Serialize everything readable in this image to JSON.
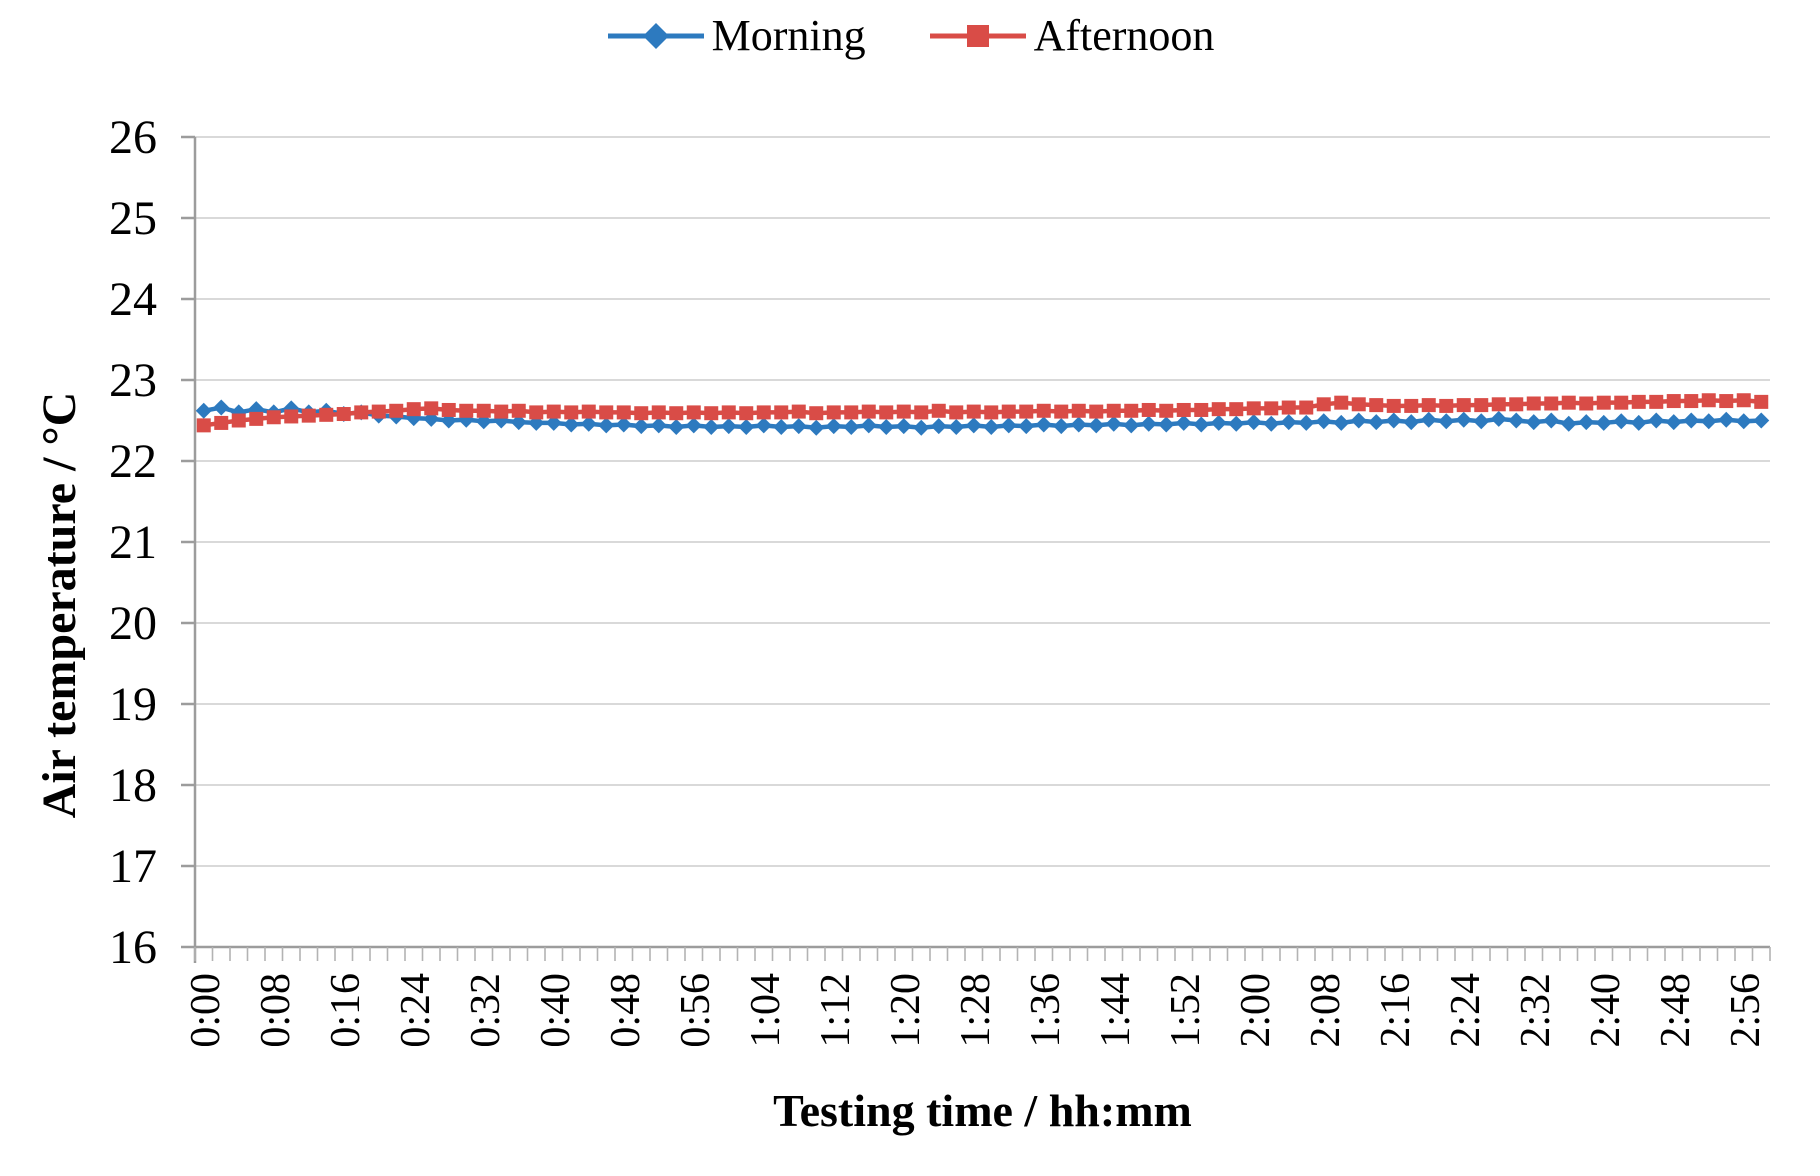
{
  "chart_data": {
    "type": "line",
    "title": "",
    "xlabel": "Testing time / hh:mm",
    "ylabel": "Air temperature / °C",
    "ylim": [
      16,
      26
    ],
    "y_step": 1,
    "x_label_every": 4,
    "grid": true,
    "legend_position": "top-center",
    "grid_color": "#d9d9d9",
    "axis_color": "#9c9c9c",
    "tick_color": "#b3b3b3",
    "x": [
      "0:00",
      "0:02",
      "0:04",
      "0:06",
      "0:08",
      "0:10",
      "0:12",
      "0:14",
      "0:16",
      "0:18",
      "0:20",
      "0:22",
      "0:24",
      "0:26",
      "0:28",
      "0:30",
      "0:32",
      "0:34",
      "0:36",
      "0:38",
      "0:40",
      "0:42",
      "0:44",
      "0:46",
      "0:48",
      "0:50",
      "0:52",
      "0:54",
      "0:56",
      "0:58",
      "1:00",
      "1:02",
      "1:04",
      "1:06",
      "1:08",
      "1:10",
      "1:12",
      "1:14",
      "1:16",
      "1:18",
      "1:20",
      "1:22",
      "1:24",
      "1:26",
      "1:28",
      "1:30",
      "1:32",
      "1:34",
      "1:36",
      "1:38",
      "1:40",
      "1:42",
      "1:44",
      "1:46",
      "1:48",
      "1:50",
      "1:52",
      "1:54",
      "1:56",
      "1:58",
      "2:00",
      "2:02",
      "2:04",
      "2:06",
      "2:08",
      "2:10",
      "2:12",
      "2:14",
      "2:16",
      "2:18",
      "2:20",
      "2:22",
      "2:24",
      "2:26",
      "2:28",
      "2:30",
      "2:32",
      "2:34",
      "2:36",
      "2:38",
      "2:40",
      "2:42",
      "2:44",
      "2:46",
      "2:48",
      "2:50",
      "2:52",
      "2:54",
      "2:56",
      "2:58"
    ],
    "series": [
      {
        "name": "Morning",
        "marker": "diamond",
        "color": "#2D7ABF",
        "values": [
          22.62,
          22.66,
          22.6,
          22.64,
          22.6,
          22.65,
          22.6,
          22.62,
          22.58,
          22.6,
          22.56,
          22.55,
          22.53,
          22.52,
          22.5,
          22.51,
          22.49,
          22.5,
          22.48,
          22.47,
          22.47,
          22.45,
          22.46,
          22.44,
          22.45,
          22.43,
          22.44,
          22.42,
          22.44,
          22.42,
          22.43,
          22.42,
          22.44,
          22.42,
          22.43,
          22.41,
          22.43,
          22.42,
          22.44,
          22.42,
          22.43,
          22.41,
          22.43,
          22.42,
          22.44,
          22.42,
          22.44,
          22.43,
          22.45,
          22.43,
          22.45,
          22.44,
          22.46,
          22.44,
          22.46,
          22.45,
          22.47,
          22.45,
          22.47,
          22.46,
          22.48,
          22.46,
          22.48,
          22.47,
          22.49,
          22.47,
          22.5,
          22.48,
          22.5,
          22.48,
          22.51,
          22.49,
          22.51,
          22.49,
          22.52,
          22.5,
          22.48,
          22.5,
          22.46,
          22.48,
          22.47,
          22.49,
          22.47,
          22.5,
          22.48,
          22.5,
          22.49,
          22.51,
          22.49,
          22.5
        ]
      },
      {
        "name": "Afternoon",
        "marker": "square",
        "color": "#D94C47",
        "values": [
          22.44,
          22.47,
          22.5,
          22.52,
          22.54,
          22.55,
          22.56,
          22.57,
          22.58,
          22.6,
          22.61,
          22.62,
          22.64,
          22.65,
          22.63,
          22.62,
          22.62,
          22.61,
          22.62,
          22.6,
          22.61,
          22.6,
          22.61,
          22.6,
          22.6,
          22.59,
          22.6,
          22.59,
          22.6,
          22.59,
          22.6,
          22.59,
          22.6,
          22.6,
          22.61,
          22.59,
          22.6,
          22.6,
          22.61,
          22.6,
          22.61,
          22.6,
          22.62,
          22.6,
          22.61,
          22.6,
          22.61,
          22.61,
          22.62,
          22.61,
          22.62,
          22.61,
          22.62,
          22.62,
          22.63,
          22.62,
          22.63,
          22.63,
          22.64,
          22.64,
          22.65,
          22.65,
          22.66,
          22.66,
          22.7,
          22.72,
          22.7,
          22.69,
          22.68,
          22.68,
          22.69,
          22.68,
          22.69,
          22.69,
          22.7,
          22.7,
          22.71,
          22.71,
          22.72,
          22.71,
          22.72,
          22.72,
          22.73,
          22.73,
          22.74,
          22.74,
          22.75,
          22.74,
          22.75,
          22.73
        ]
      }
    ]
  }
}
